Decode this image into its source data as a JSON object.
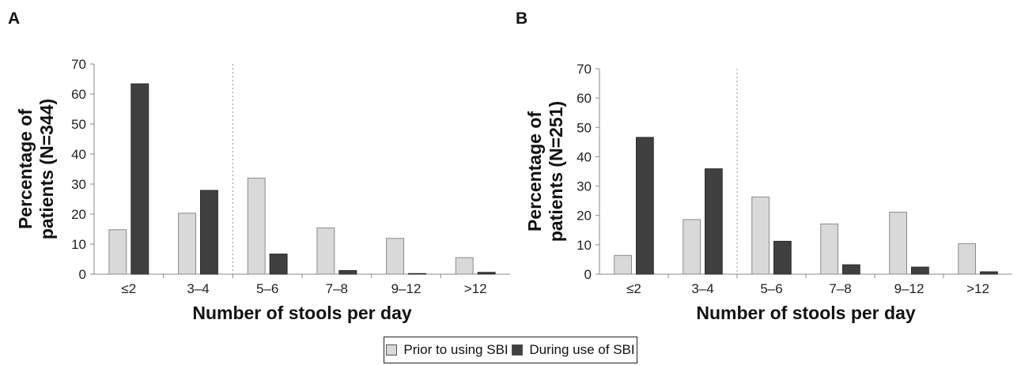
{
  "colors": {
    "prior": "#d9d9d9",
    "during": "#404040"
  },
  "legend": {
    "prior_label": "Prior to using SBI",
    "during_label": "During use of SBI"
  },
  "chart_data": [
    {
      "type": "bar",
      "panel_label": "A",
      "categories": [
        "≤2",
        "3–4",
        "5–6",
        "7–8",
        "9–12",
        ">12"
      ],
      "series": [
        {
          "name": "Prior to using SBI",
          "values": [
            14.8,
            20.3,
            32.0,
            15.4,
            11.9,
            5.5
          ]
        },
        {
          "name": "During use of SBI",
          "values": [
            63.4,
            27.9,
            6.7,
            1.2,
            0.2,
            0.6
          ]
        }
      ],
      "xlabel": "Number of stools per day",
      "ylabel": "Percentage of patients (N=344)",
      "ylabel_lines": [
        "Percentage of",
        "patients (N=344)"
      ],
      "ylim": [
        0,
        70
      ],
      "yticks": [
        0,
        10,
        20,
        30,
        40,
        50,
        60,
        70
      ],
      "divider_after_category": 2
    },
    {
      "type": "bar",
      "panel_label": "B",
      "categories": [
        "≤2",
        "3–4",
        "5–6",
        "7–8",
        "9–12",
        ">12"
      ],
      "series": [
        {
          "name": "Prior to using SBI",
          "values": [
            6.4,
            18.6,
            26.3,
            17.1,
            21.1,
            10.4
          ]
        },
        {
          "name": "During use of SBI",
          "values": [
            46.6,
            35.9,
            11.2,
            3.2,
            2.4,
            0.8
          ]
        }
      ],
      "xlabel": "Number of stools per day",
      "ylabel": "Percentage of patients (N=251)",
      "ylabel_lines": [
        "Percentage of",
        "patients (N=251)"
      ],
      "ylim": [
        0,
        70
      ],
      "yticks": [
        0,
        10,
        20,
        30,
        40,
        50,
        60,
        70
      ],
      "divider_after_category": 2
    }
  ]
}
